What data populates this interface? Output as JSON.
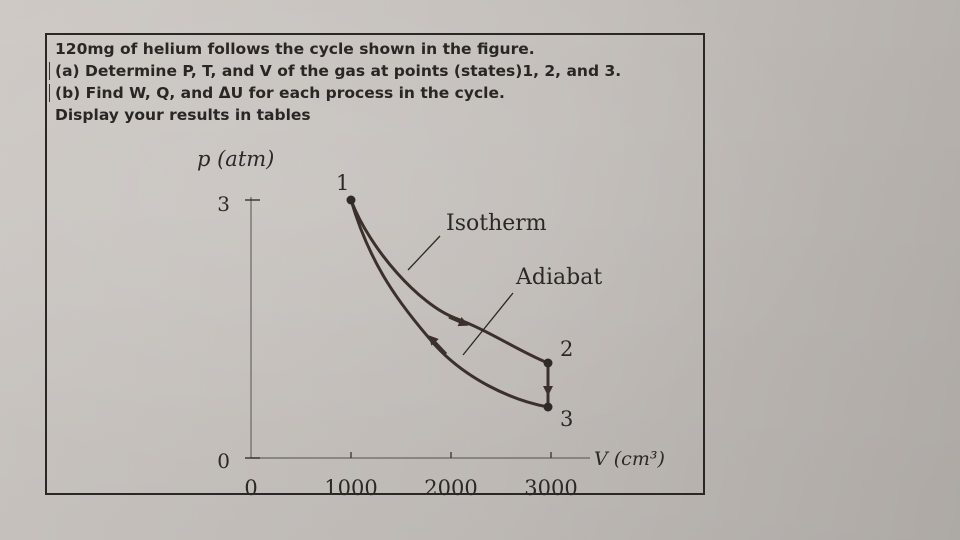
{
  "problem": {
    "lines": [
      "120mg of helium follows the cycle shown in the figure.",
      "(a) Determine P, T, and V of the gas at points (states)1, 2, and 3.",
      "(b) Find W, Q, and ΔU for each process in the cycle.",
      "Display your results in tables"
    ]
  },
  "figure": {
    "y_axis_label": "p (atm)",
    "x_axis_label": "V (cm³)",
    "y_ticks": [
      "0",
      "3"
    ],
    "x_ticks": [
      "0",
      "1000",
      "2000",
      "3000"
    ],
    "curve_labels": {
      "isotherm": "Isotherm",
      "adiabat": "Adiabat"
    },
    "point_labels": [
      "1",
      "2",
      "3"
    ]
  },
  "chart_data": {
    "type": "line",
    "title": "",
    "xlabel": "V (cm³)",
    "ylabel": "p (atm)",
    "xlim": [
      0,
      3300
    ],
    "ylim": [
      0,
      3.5
    ],
    "x_ticks": [
      0,
      1000,
      2000,
      3000
    ],
    "y_ticks": [
      0,
      3
    ],
    "grid": false,
    "legend": "none",
    "points": [
      {
        "label": "1",
        "V": 1000,
        "p": 3
      },
      {
        "label": "2",
        "V": 3000,
        "p": 1
      },
      {
        "label": "3",
        "V": 3000,
        "p": 0.48
      }
    ],
    "series": [
      {
        "name": "Isotherm",
        "from": "1",
        "to": "2"
      },
      {
        "name": "",
        "from": "2",
        "to": "3"
      },
      {
        "name": "Adiabat",
        "from": "3",
        "to": "1"
      }
    ]
  },
  "colors": {
    "ink": "#2b2826",
    "curve": "#3b302c",
    "background": "#c8c3bf"
  }
}
